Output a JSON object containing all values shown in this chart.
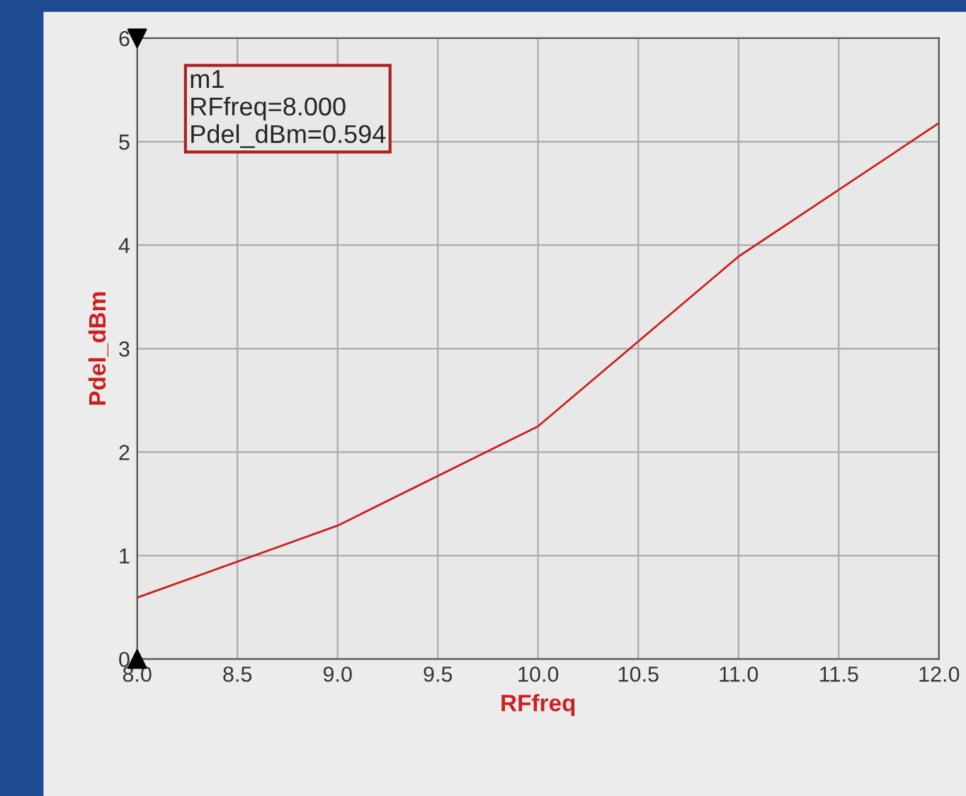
{
  "chart_data": {
    "type": "line",
    "xlabel": "RFfreq",
    "ylabel": "Pdel_dBm",
    "x": [
      8.0,
      9.0,
      10.0,
      11.0,
      12.0
    ],
    "series": [
      {
        "color": "#cc2020",
        "values": [
          0.594,
          1.29,
          2.25,
          3.89,
          5.18
        ]
      }
    ],
    "xlim": [
      8.0,
      12.0
    ],
    "xticks": [
      {
        "value": 8.0,
        "label": "8.0"
      },
      {
        "value": 8.5,
        "label": "8.5"
      },
      {
        "value": 9.0,
        "label": "9.0"
      },
      {
        "value": 9.5,
        "label": "9.5"
      },
      {
        "value": 10.0,
        "label": "10.0"
      },
      {
        "value": 10.5,
        "label": "10.5"
      },
      {
        "value": 11.0,
        "label": "11.0"
      },
      {
        "value": 11.5,
        "label": "11.5"
      },
      {
        "value": 12.0,
        "label": "12.0"
      }
    ],
    "ylim": [
      0,
      6
    ],
    "yticks": [
      0,
      1,
      2,
      3,
      4,
      5,
      6
    ],
    "grid": true,
    "marker": "none",
    "line_style": "solid",
    "annotations": [
      "m1\nRFfreq=8.000\nPdel_dBm=0.594"
    ]
  }
}
